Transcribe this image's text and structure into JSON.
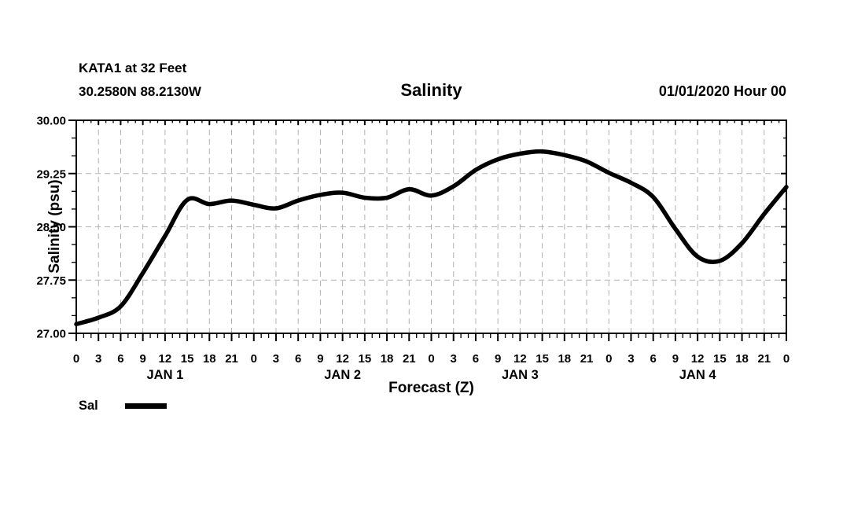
{
  "header": {
    "station_line": "KATA1 at 32 Feet",
    "coords_line": "30.2580N 88.2130W",
    "title": "Salinity",
    "datetime_line": "01/01/2020 Hour 00"
  },
  "legend": {
    "label": "Sal"
  },
  "colors": {
    "foreground": "#000000",
    "background": "#ffffff",
    "gridline": "#b2b2b2",
    "series_line": "#000000"
  },
  "chart_data": {
    "type": "line",
    "title": "Salinity",
    "xlabel": "Forecast (Z)",
    "ylabel": "Salinity (psu)",
    "xlim_hours": [
      0,
      96
    ],
    "ylim": [
      27.0,
      30.0
    ],
    "y_major_ticks": [
      27.0,
      27.75,
      28.5,
      29.25,
      30.0
    ],
    "y_tick_labels": [
      "27.00",
      "27.75",
      "28.50",
      "29.25",
      "30.00"
    ],
    "y_minor_step": 0.25,
    "x_major_step_hours": 3,
    "x_minor_step_hours": 1,
    "x_tick_labels": [
      "0",
      "3",
      "6",
      "9",
      "12",
      "15",
      "18",
      "21",
      "0",
      "3",
      "6",
      "9",
      "12",
      "15",
      "18",
      "21",
      "0",
      "3",
      "6",
      "9",
      "12",
      "15",
      "18",
      "21",
      "0",
      "3",
      "6",
      "9",
      "12",
      "15",
      "18",
      "21",
      "0"
    ],
    "day_labels": [
      {
        "label": "JAN 1",
        "center_hour": 12
      },
      {
        "label": "JAN 2",
        "center_hour": 36
      },
      {
        "label": "JAN 3",
        "center_hour": 60
      },
      {
        "label": "JAN 4",
        "center_hour": 84
      }
    ],
    "grid": {
      "style": "dashed",
      "color": "#b2b2b2",
      "vertical_every_hours": 3,
      "horizontal_at": [
        27.75,
        28.5,
        29.25
      ]
    },
    "legend_position": "bottom-left",
    "series": [
      {
        "name": "Sal",
        "color": "#000000",
        "x_hours": [
          0,
          3,
          6,
          9,
          12,
          15,
          18,
          21,
          24,
          27,
          30,
          33,
          36,
          39,
          42,
          45,
          48,
          51,
          54,
          57,
          60,
          63,
          66,
          69,
          72,
          75,
          78,
          81,
          84,
          87,
          90,
          93,
          96
        ],
        "values": [
          27.13,
          27.22,
          27.38,
          27.85,
          28.37,
          28.88,
          28.82,
          28.87,
          28.81,
          28.76,
          28.87,
          28.95,
          28.98,
          28.91,
          28.91,
          29.03,
          28.94,
          29.07,
          29.3,
          29.45,
          29.53,
          29.56,
          29.51,
          29.42,
          29.26,
          29.12,
          28.92,
          28.47,
          28.08,
          28.02,
          28.27,
          28.68,
          29.06
        ]
      }
    ]
  }
}
